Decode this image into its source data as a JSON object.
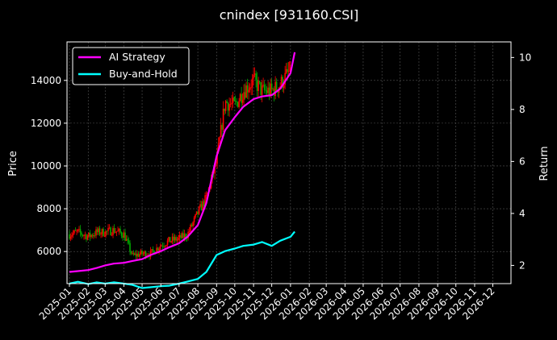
{
  "chart_data": {
    "type": "line",
    "title": "cnindex [931160.CSI]",
    "ylabel_left": "Price",
    "ylabel_right": "Return",
    "grid": true,
    "legend_position": "top-left",
    "x_range": [
      "2024-12-28",
      "2026-12-31"
    ],
    "y_left_range": [
      4500,
      15800
    ],
    "y_right_range": [
      1.3,
      10.6
    ],
    "x_ticks": [
      "2025-01",
      "2025-02",
      "2025-03",
      "2025-04",
      "2025-05",
      "2025-06",
      "2025-07",
      "2025-08",
      "2025-09",
      "2025-10",
      "2025-11",
      "2025-12",
      "2026-01",
      "2026-02",
      "2026-03",
      "2026-04",
      "2026-05",
      "2026-06",
      "2026-07",
      "2026-08",
      "2026-09",
      "2026-10",
      "2026-11",
      "2026-12"
    ],
    "y_left_ticks": [
      6000,
      8000,
      10000,
      12000,
      14000
    ],
    "y_right_ticks": [
      2,
      4,
      6,
      8,
      10
    ],
    "colors": {
      "up_candle": "#ff0000",
      "down_candle": "#00aa00",
      "ai_strategy": "#ff00ff",
      "buy_and_hold": "#00ffff"
    },
    "price_candles": {
      "description": "OHLC candlesticks, left axis (Price)",
      "dates": [
        "2025-01-01",
        "2025-01-15",
        "2025-02-01",
        "2025-02-15",
        "2025-03-01",
        "2025-03-15",
        "2025-04-01",
        "2025-04-15",
        "2025-05-01",
        "2025-05-15",
        "2025-06-01",
        "2025-06-15",
        "2025-07-01",
        "2025-07-15",
        "2025-08-01",
        "2025-08-15",
        "2025-09-01",
        "2025-09-15",
        "2025-10-01",
        "2025-10-15",
        "2025-11-01",
        "2025-11-15",
        "2025-12-01",
        "2025-12-15",
        "2026-01-01"
      ],
      "close": [
        6800,
        6900,
        6700,
        6900,
        6900,
        7000,
        6800,
        5800,
        5900,
        5900,
        6300,
        6500,
        6600,
        6800,
        7800,
        8500,
        10200,
        13000,
        12800,
        13500,
        14000,
        13500,
        13500,
        13800,
        14500
      ]
    },
    "series": [
      {
        "name": "AI Strategy",
        "axis": "right",
        "dates": [
          "2025-01-01",
          "2025-01-15",
          "2025-02-01",
          "2025-02-15",
          "2025-03-01",
          "2025-03-15",
          "2025-04-01",
          "2025-04-15",
          "2025-05-01",
          "2025-05-15",
          "2025-06-01",
          "2025-06-15",
          "2025-07-01",
          "2025-07-15",
          "2025-08-01",
          "2025-08-15",
          "2025-09-01",
          "2025-09-15",
          "2025-10-01",
          "2025-10-15",
          "2025-11-01",
          "2025-11-15",
          "2025-12-01",
          "2025-12-15",
          "2026-01-01",
          "2026-01-08"
        ],
        "values": [
          1.75,
          1.78,
          1.82,
          1.9,
          2.0,
          2.07,
          2.1,
          2.17,
          2.24,
          2.4,
          2.55,
          2.7,
          2.85,
          3.1,
          3.55,
          4.4,
          6.2,
          7.2,
          7.7,
          8.1,
          8.4,
          8.5,
          8.55,
          8.8,
          9.4,
          10.2
        ]
      },
      {
        "name": "Buy-and-Hold",
        "axis": "right",
        "dates": [
          "2025-01-01",
          "2025-01-15",
          "2025-02-01",
          "2025-02-15",
          "2025-03-01",
          "2025-03-15",
          "2025-04-01",
          "2025-04-15",
          "2025-05-01",
          "2025-05-15",
          "2025-06-01",
          "2025-06-15",
          "2025-07-01",
          "2025-07-15",
          "2025-08-01",
          "2025-08-15",
          "2025-09-01",
          "2025-09-15",
          "2025-10-01",
          "2025-10-15",
          "2025-11-01",
          "2025-11-15",
          "2025-12-01",
          "2025-12-15",
          "2026-01-01",
          "2026-01-08"
        ],
        "values": [
          1.3,
          1.37,
          1.28,
          1.35,
          1.3,
          1.35,
          1.3,
          1.25,
          1.13,
          1.16,
          1.2,
          1.22,
          1.3,
          1.38,
          1.48,
          1.75,
          2.4,
          2.55,
          2.65,
          2.75,
          2.8,
          2.9,
          2.75,
          2.95,
          3.1,
          3.3
        ]
      }
    ]
  }
}
